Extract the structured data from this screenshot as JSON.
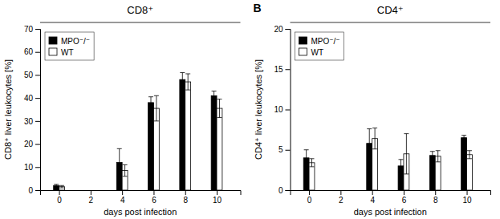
{
  "chart_data": [
    {
      "type": "bar",
      "title": "CD8⁺",
      "xlabel": "days post infection",
      "ylabel": "CD8⁺ liver leukocytes [%]",
      "x": [
        0,
        4,
        6,
        8,
        10
      ],
      "series": [
        {
          "name": "MPO⁻/⁻",
          "color": "#000000",
          "values": [
            2.0,
            12.0,
            38.0,
            48.0,
            41.0
          ],
          "errors": [
            0.5,
            6.0,
            2.5,
            3.0,
            2.0
          ]
        },
        {
          "name": "WT",
          "color": "#ffffff",
          "values": [
            1.5,
            8.5,
            35.5,
            47.0,
            35.5
          ],
          "errors": [
            0.5,
            2.5,
            5.5,
            3.5,
            4.0
          ]
        }
      ],
      "xlim": [
        -1.2,
        11.5
      ],
      "xticks": [
        0,
        2,
        4,
        6,
        8,
        10
      ],
      "ylim": [
        0,
        70
      ],
      "yticks": [
        0,
        10,
        20,
        30,
        40,
        50,
        60,
        70
      ],
      "legend": "upper left"
    },
    {
      "type": "bar",
      "title": "CD4⁺",
      "xlabel": "days post infection",
      "ylabel": "CD4⁺ liver leukocytes [%]",
      "annotations": [
        "B"
      ],
      "x": [
        0,
        4,
        6,
        8,
        10
      ],
      "series": [
        {
          "name": "MPO⁻/⁻",
          "color": "#000000",
          "values": [
            4.0,
            5.8,
            3.0,
            4.3,
            6.5
          ],
          "errors": [
            1.0,
            1.8,
            0.8,
            0.5,
            0.3
          ]
        },
        {
          "name": "WT",
          "color": "#ffffff",
          "values": [
            3.4,
            6.4,
            4.5,
            4.2,
            4.4
          ],
          "errors": [
            0.5,
            1.3,
            2.5,
            0.7,
            0.5
          ]
        }
      ],
      "xlim": [
        -1.2,
        11.5
      ],
      "xticks": [
        0,
        2,
        4,
        6,
        8,
        10
      ],
      "ylim": [
        0,
        20
      ],
      "yticks": [
        0,
        5,
        10,
        15,
        20
      ],
      "legend": "upper left"
    }
  ]
}
